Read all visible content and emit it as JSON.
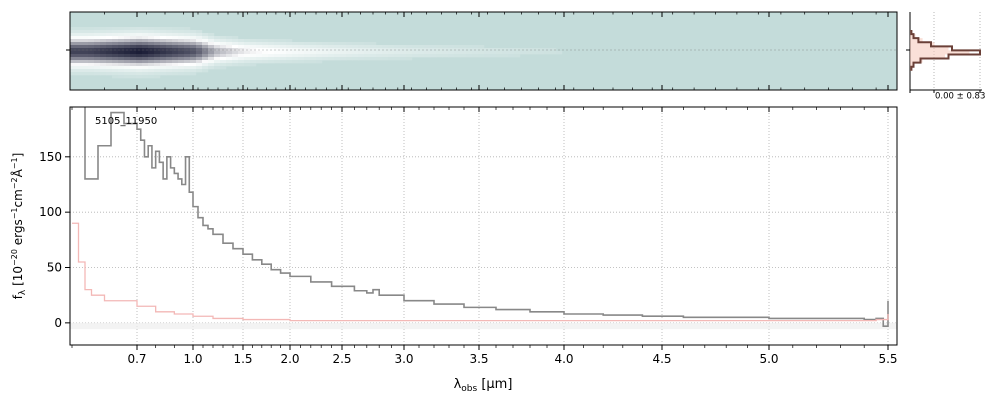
{
  "chart_data": [
    {
      "panel": "2d-spectrum",
      "type": "heatmap",
      "description_visible": "two-dimensional spectrum strip",
      "colormap": [
        "#c4dcda",
        "#ffffff",
        "#1a1c35"
      ],
      "x_ticks": [
        0.7,
        1.0,
        1.5,
        2.0,
        2.5,
        3.0,
        3.5,
        4.0,
        4.5,
        5.0,
        5.5
      ],
      "trace_intensity_by_wavelength": [
        {
          "x": 0.62,
          "v": 0.85
        },
        {
          "x": 0.7,
          "v": 0.95
        },
        {
          "x": 0.8,
          "v": 0.9
        },
        {
          "x": 1.0,
          "v": 0.8
        },
        {
          "x": 1.2,
          "v": 0.55
        },
        {
          "x": 1.5,
          "v": 0.4
        },
        {
          "x": 2.0,
          "v": 0.3
        },
        {
          "x": 2.5,
          "v": 0.22
        },
        {
          "x": 3.0,
          "v": 0.15
        },
        {
          "x": 3.5,
          "v": 0.1
        },
        {
          "x": 4.0,
          "v": 0.05
        },
        {
          "x": 5.5,
          "v": 0.0
        }
      ]
    },
    {
      "panel": "spatial-profile",
      "type": "line",
      "annotation": "0.00 ± 0.83",
      "series": [
        {
          "name": "",
          "color": "#6b4038",
          "values": [
            0.02,
            0.05,
            0.12,
            0.3,
            0.6,
            1.0,
            0.55,
            0.15,
            0.05,
            0.02
          ]
        },
        {
          "name": "",
          "color": "#f5c6b8",
          "values": [
            0.03,
            0.08,
            0.18,
            0.35,
            0.55,
            0.85,
            0.5,
            0.18,
            0.06,
            0.03
          ]
        }
      ]
    },
    {
      "panel": "1d-spectrum",
      "type": "line",
      "annotation": "5105_11950",
      "xlabel": "λ_obs [μm]",
      "ylabel": "f_λ [10^-20 ergs^-1 cm^-2 Å^-1]",
      "x_ticks": [
        0.7,
        1.0,
        1.5,
        2.0,
        2.5,
        3.0,
        3.5,
        4.0,
        4.5,
        5.0,
        5.5
      ],
      "y_ticks": [
        0,
        50,
        100,
        150
      ],
      "ylim": [
        -20,
        195
      ],
      "grid": true,
      "series": [
        {
          "name": "",
          "color": "#888888",
          "x": [
            0.6,
            0.62,
            0.64,
            0.66,
            0.68,
            0.7,
            0.72,
            0.74,
            0.76,
            0.78,
            0.8,
            0.82,
            0.84,
            0.86,
            0.88,
            0.9,
            0.92,
            0.94,
            0.96,
            0.98,
            1.0,
            1.05,
            1.1,
            1.15,
            1.2,
            1.3,
            1.4,
            1.5,
            1.6,
            1.7,
            1.8,
            1.9,
            2.0,
            2.2,
            2.4,
            2.6,
            2.7,
            2.75,
            2.8,
            3.0,
            3.2,
            3.4,
            3.6,
            3.8,
            4.0,
            4.2,
            4.4,
            4.6,
            4.8,
            5.0,
            5.2,
            5.4,
            5.45,
            5.48,
            5.5
          ],
          "y": [
            200,
            130,
            160,
            190,
            180,
            175,
            165,
            150,
            160,
            140,
            155,
            145,
            130,
            150,
            140,
            135,
            130,
            125,
            150,
            118,
            105,
            95,
            88,
            85,
            80,
            72,
            67,
            62,
            57,
            53,
            48,
            45,
            42,
            37,
            33,
            29,
            27,
            30,
            25,
            20,
            17,
            14,
            12,
            10,
            8,
            7,
            6,
            5,
            5,
            4,
            4,
            3,
            4,
            -3,
            20
          ]
        },
        {
          "name": "",
          "color": "#f3b8b6",
          "x": [
            0.6,
            0.61,
            0.62,
            0.63,
            0.65,
            0.7,
            0.8,
            0.9,
            1.0,
            1.2,
            1.5,
            2.0,
            2.5,
            3.0,
            3.5,
            4.0,
            4.5,
            5.0,
            5.3,
            5.45,
            5.5
          ],
          "y": [
            90,
            55,
            30,
            25,
            20,
            15,
            10,
            8,
            6,
            4,
            3,
            2,
            2,
            2,
            2,
            2,
            2,
            2,
            2,
            3,
            8
          ]
        }
      ]
    }
  ]
}
